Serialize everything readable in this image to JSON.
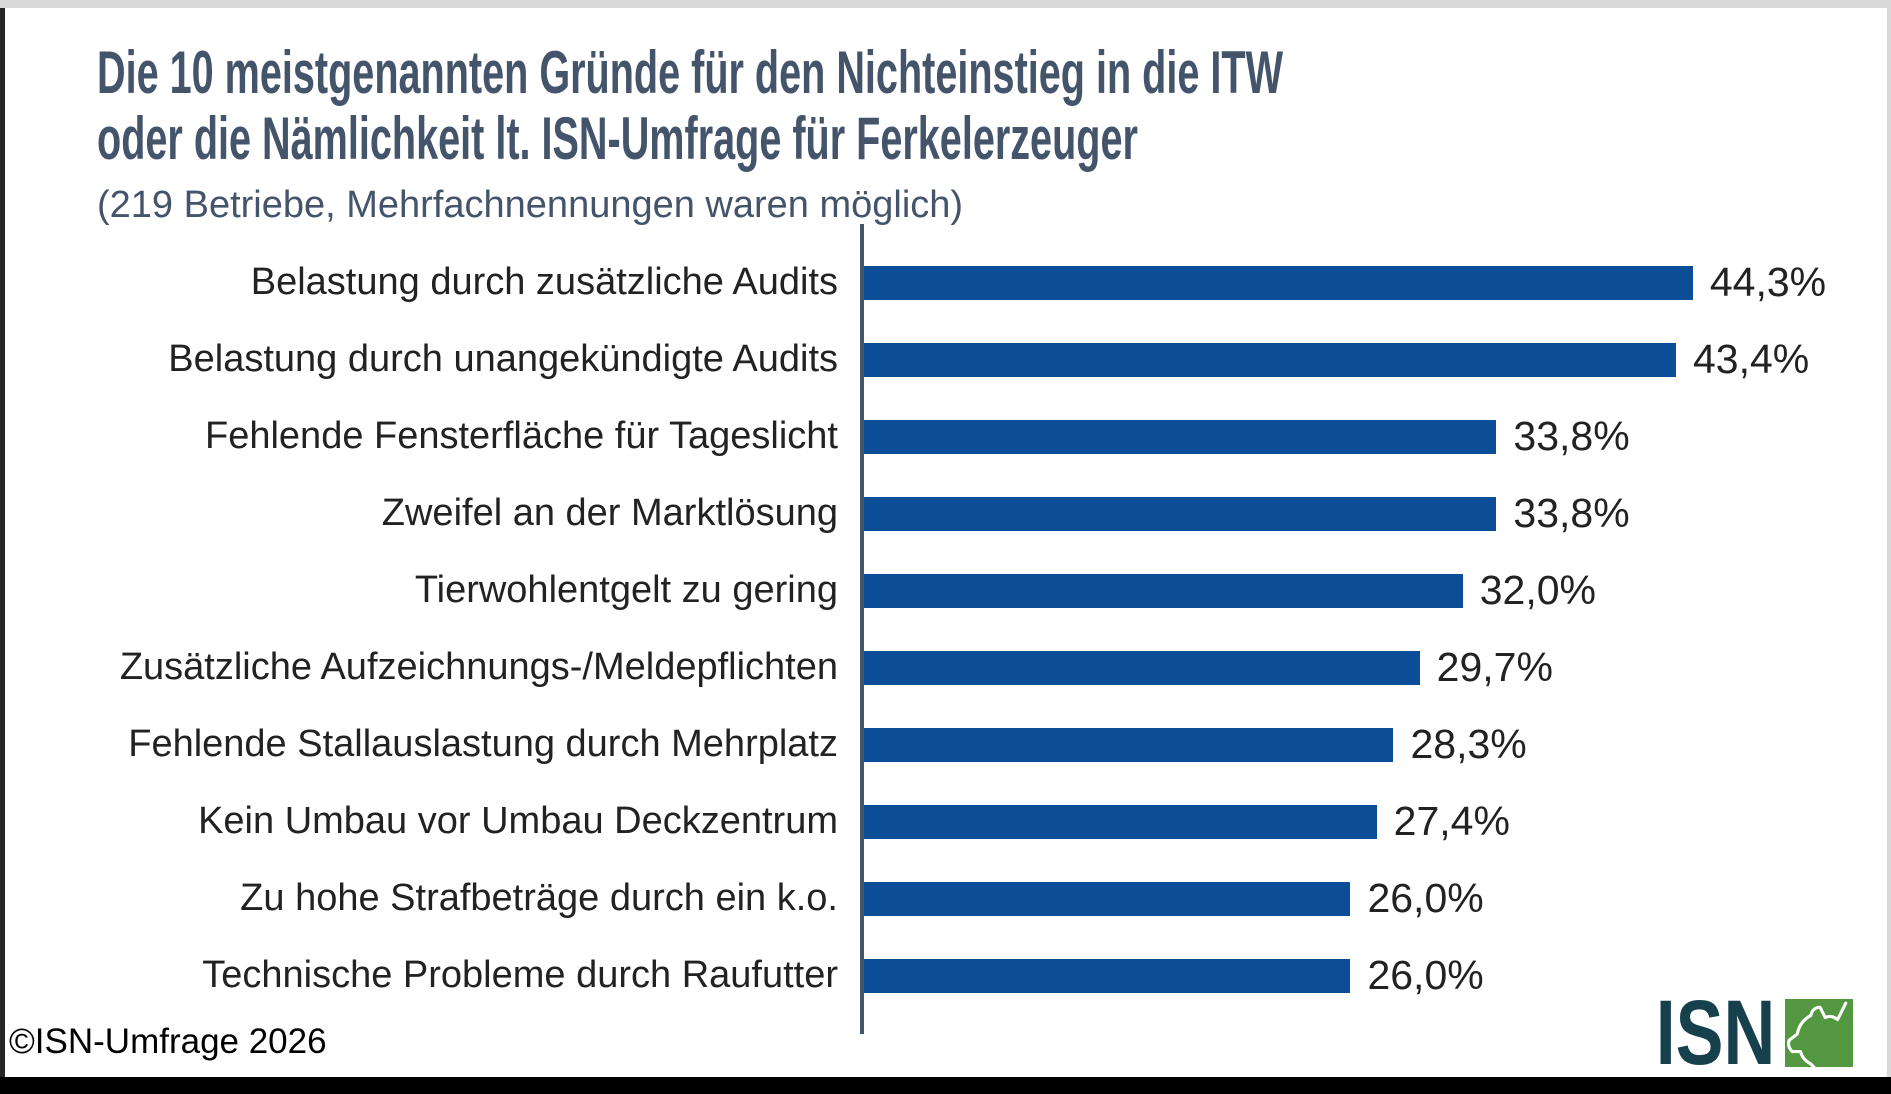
{
  "header": {
    "title_line1": "Die 10 meistgenannten Gründe für den Nichteinstieg in die ITW",
    "title_line2": "oder die Nämlichkeit lt. ISN-Umfrage für Ferkelerzeuger",
    "subtitle": "(219 Betriebe, Mehrfachnennungen waren möglich)"
  },
  "chart_data": {
    "type": "bar",
    "orientation": "horizontal",
    "title": "Die 10 meistgenannten Gründe für den Nichteinstieg in die ITW oder die Nämlichkeit lt. ISN-Umfrage für Ferkelerzeuger",
    "subtitle": "(219 Betriebe, Mehrfachnennungen waren möglich)",
    "categories": [
      "Belastung durch zusätzliche Audits",
      "Belastung durch unangekündigte Audits",
      "Fehlende Fensterfläche für Tageslicht",
      "Zweifel an der Marktlösung",
      "Tierwohlentgelt zu gering",
      "Zusätzliche Aufzeichnungs-/Meldepflichten",
      "Fehlende Stallauslastung durch Mehrplatz",
      "Kein Umbau vor Umbau Deckzentrum",
      "Zu hohe Strafbeträge durch ein k.o.",
      "Technische Probleme durch Raufutter"
    ],
    "values": [
      44.3,
      43.4,
      33.8,
      33.8,
      32.0,
      29.7,
      28.3,
      27.4,
      26.0,
      26.0
    ],
    "value_labels": [
      "44,3%",
      "43,4%",
      "33,8%",
      "33,8%",
      "32,0%",
      "29,7%",
      "28,3%",
      "27,4%",
      "26,0%",
      "26,0%"
    ],
    "xlabel": "",
    "ylabel": "",
    "xlim": [
      0,
      52
    ],
    "grid": false,
    "legend": false,
    "bar_color": "#0B4D96",
    "axis_color": "#44546A"
  },
  "footer": {
    "copyright": "©ISN-Umfrage 2026"
  },
  "logo": {
    "text": "ISN",
    "icon": "pig-head-icon",
    "text_color": "#16404B",
    "icon_bg_color": "#539741"
  }
}
